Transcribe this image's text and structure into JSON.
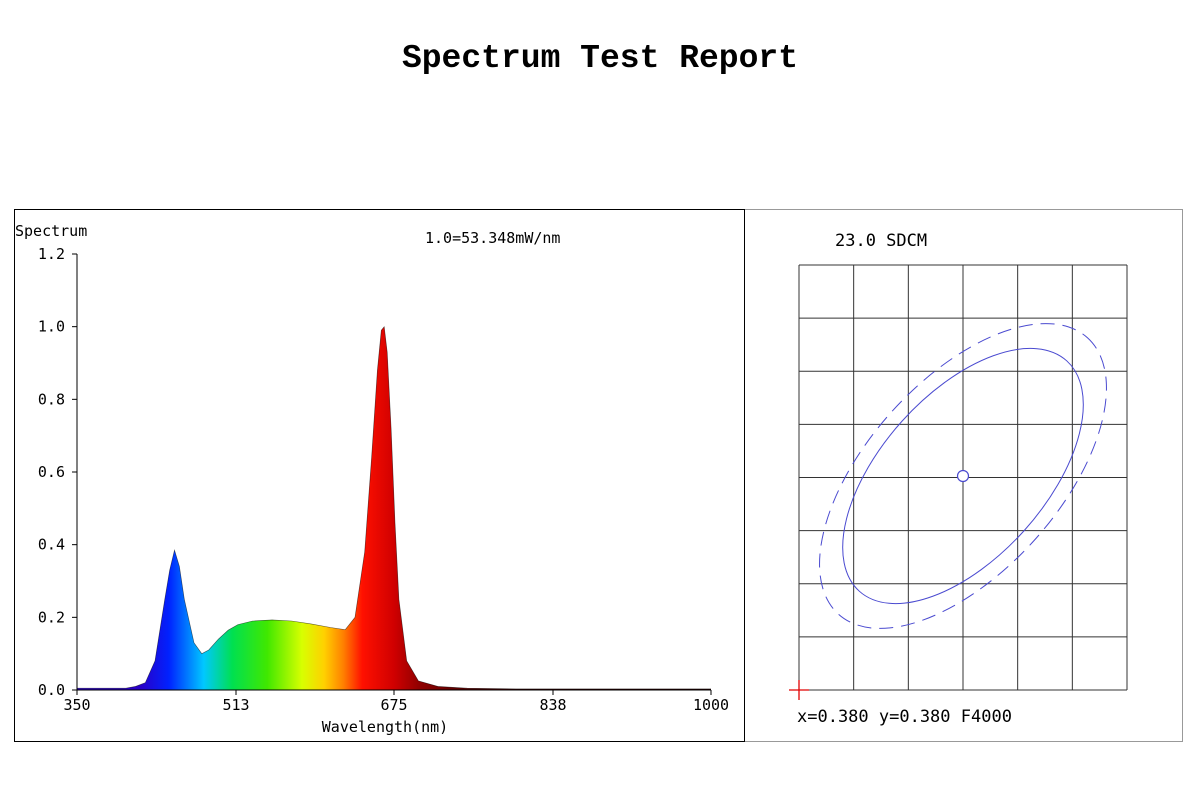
{
  "report_title": "Spectrum Test Report",
  "chart_data": [
    {
      "type": "area",
      "ylabel": "Spectrum",
      "xlabel": "Wavelength(nm)",
      "annotation": "1.0=53.348mW/nm",
      "xlim": [
        350,
        1000
      ],
      "ylim": [
        0,
        1.2
      ],
      "x_ticks": [
        "350",
        "513",
        "675",
        "838",
        "1000"
      ],
      "x_tick_values": [
        350,
        513,
        675,
        838,
        1000
      ],
      "y_ticks": [
        "0.0",
        "0.2",
        "0.4",
        "0.6",
        "0.8",
        "1.0",
        "1.2"
      ],
      "y_tick_values": [
        0,
        0.2,
        0.4,
        0.6,
        0.8,
        1.0,
        1.2
      ],
      "grid": false,
      "x": [
        350,
        400,
        410,
        420,
        430,
        440,
        445,
        450,
        455,
        460,
        470,
        478,
        485,
        495,
        505,
        515,
        530,
        550,
        570,
        590,
        610,
        625,
        635,
        645,
        652,
        658,
        662,
        665,
        668,
        672,
        676,
        680,
        688,
        700,
        720,
        750,
        800,
        900,
        1000
      ],
      "y": [
        0.005,
        0.005,
        0.01,
        0.02,
        0.08,
        0.25,
        0.33,
        0.385,
        0.34,
        0.25,
        0.13,
        0.1,
        0.11,
        0.14,
        0.165,
        0.18,
        0.19,
        0.193,
        0.19,
        0.182,
        0.172,
        0.166,
        0.2,
        0.38,
        0.64,
        0.88,
        0.99,
        1.0,
        0.93,
        0.72,
        0.46,
        0.25,
        0.08,
        0.025,
        0.01,
        0.005,
        0.003,
        0.003,
        0.003
      ]
    },
    {
      "type": "scatter",
      "header": "23.0 SDCM",
      "readout": "x=0.380 y=0.380 F4000",
      "center": {
        "x": 0.38,
        "y": 0.38
      },
      "grid": true
    }
  ]
}
